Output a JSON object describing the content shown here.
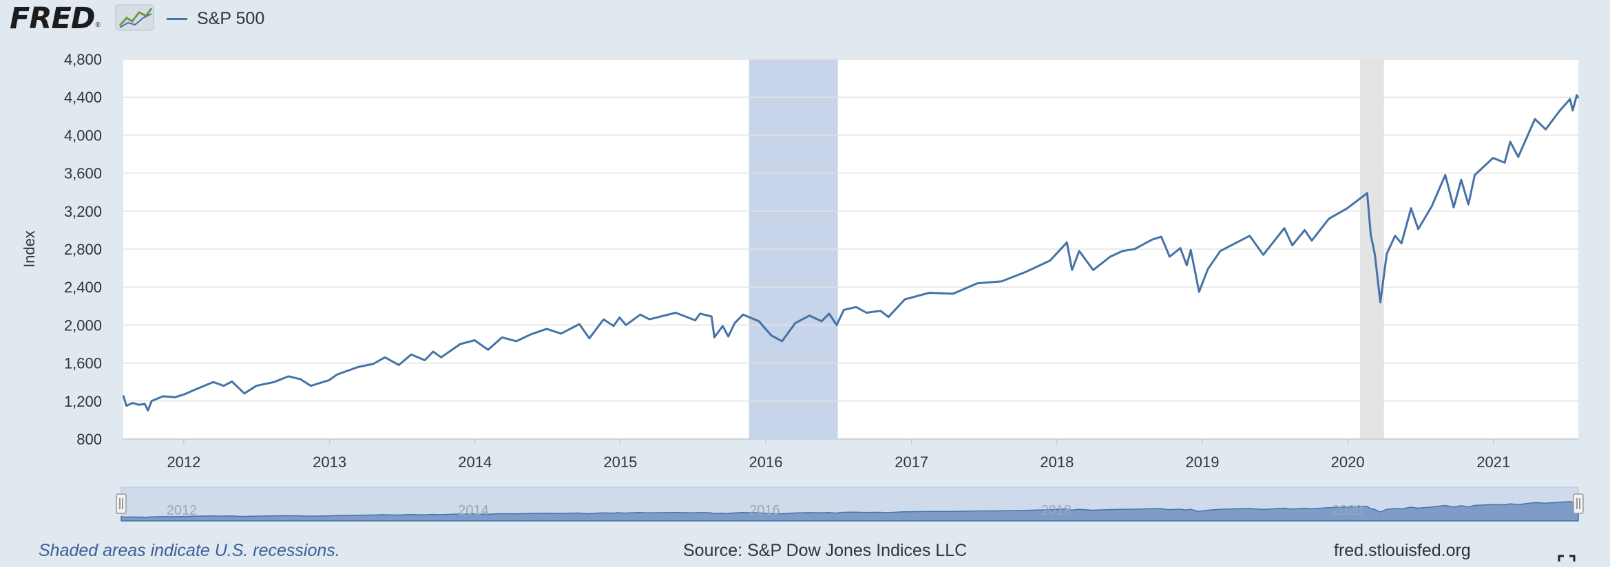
{
  "header": {
    "logo_text": "FRED",
    "logo_mark": "®",
    "legend_label": "S&P 500"
  },
  "footer": {
    "recession_note": "Shaded areas indicate U.S. recessions.",
    "source": "Source: S&P Dow Jones Indices LLC",
    "site": "fred.stlouisfed.org"
  },
  "icons": {
    "logo_graph": "line-chart-icon",
    "fullscreen": "fullscreen-icon"
  },
  "colors": {
    "series": "#4572a7",
    "shade": "#c8d4e9",
    "shade_covid": "#e3e3e3",
    "background": "#e1e9f0"
  },
  "chart_data": {
    "type": "line",
    "title": "",
    "xlabel": "",
    "ylabel": "Index",
    "ylim": [
      800,
      4800
    ],
    "xlim": [
      "2011-08-02",
      "2021-08-02"
    ],
    "yticks": [
      800,
      1200,
      1600,
      2000,
      2400,
      2800,
      3200,
      3600,
      4000,
      4400,
      4800
    ],
    "ytick_labels": [
      "800",
      "1,200",
      "1,600",
      "2,000",
      "2,400",
      "2,800",
      "3,200",
      "3,600",
      "4,000",
      "4,400",
      "4,800"
    ],
    "xticks": [
      "2012",
      "2013",
      "2014",
      "2015",
      "2016",
      "2017",
      "2018",
      "2019",
      "2020",
      "2021"
    ],
    "navigator_labels": [
      "2012",
      "2014",
      "2016",
      "2018",
      "2020"
    ],
    "grid": true,
    "legend": "top-left",
    "shaded_periods": [
      {
        "start": "2015-11-20",
        "end": "2016-06-30",
        "color": "#c8d4e9"
      },
      {
        "start": "2020-02-01",
        "end": "2020-04-01",
        "color": "#e3e3e3"
      }
    ],
    "series": [
      {
        "name": "S&P 500",
        "color": "#4572a7",
        "points": [
          [
            "2011-08-02",
            1260
          ],
          [
            "2011-08-10",
            1150
          ],
          [
            "2011-08-25",
            1180
          ],
          [
            "2011-09-10",
            1160
          ],
          [
            "2011-09-25",
            1170
          ],
          [
            "2011-10-03",
            1100
          ],
          [
            "2011-10-12",
            1200
          ],
          [
            "2011-11-10",
            1250
          ],
          [
            "2011-12-10",
            1240
          ],
          [
            "2012-01-02",
            1270
          ],
          [
            "2012-02-01",
            1325
          ],
          [
            "2012-03-15",
            1400
          ],
          [
            "2012-04-10",
            1360
          ],
          [
            "2012-05-01",
            1405
          ],
          [
            "2012-06-01",
            1280
          ],
          [
            "2012-07-01",
            1360
          ],
          [
            "2012-08-15",
            1400
          ],
          [
            "2012-09-20",
            1460
          ],
          [
            "2012-10-20",
            1430
          ],
          [
            "2012-11-15",
            1360
          ],
          [
            "2012-12-31",
            1420
          ],
          [
            "2013-01-20",
            1480
          ],
          [
            "2013-03-15",
            1560
          ],
          [
            "2013-04-20",
            1590
          ],
          [
            "2013-05-20",
            1660
          ],
          [
            "2013-06-24",
            1580
          ],
          [
            "2013-07-25",
            1690
          ],
          [
            "2013-08-28",
            1630
          ],
          [
            "2013-09-18",
            1720
          ],
          [
            "2013-10-08",
            1660
          ],
          [
            "2013-11-25",
            1800
          ],
          [
            "2013-12-31",
            1840
          ],
          [
            "2014-02-03",
            1740
          ],
          [
            "2014-03-10",
            1870
          ],
          [
            "2014-04-15",
            1830
          ],
          [
            "2014-05-20",
            1900
          ],
          [
            "2014-06-30",
            1960
          ],
          [
            "2014-08-05",
            1910
          ],
          [
            "2014-09-20",
            2010
          ],
          [
            "2014-10-15",
            1860
          ],
          [
            "2014-11-20",
            2060
          ],
          [
            "2014-12-15",
            1990
          ],
          [
            "2014-12-30",
            2080
          ],
          [
            "2015-01-15",
            2000
          ],
          [
            "2015-02-20",
            2110
          ],
          [
            "2015-03-15",
            2060
          ],
          [
            "2015-05-20",
            2130
          ],
          [
            "2015-07-08",
            2050
          ],
          [
            "2015-07-20",
            2120
          ],
          [
            "2015-08-18",
            2090
          ],
          [
            "2015-08-25",
            1870
          ],
          [
            "2015-09-15",
            1990
          ],
          [
            "2015-09-29",
            1880
          ],
          [
            "2015-10-15",
            2020
          ],
          [
            "2015-11-05",
            2110
          ],
          [
            "2015-12-15",
            2040
          ],
          [
            "2016-01-15",
            1890
          ],
          [
            "2016-02-11",
            1830
          ],
          [
            "2016-03-15",
            2020
          ],
          [
            "2016-04-20",
            2100
          ],
          [
            "2016-05-20",
            2040
          ],
          [
            "2016-06-08",
            2120
          ],
          [
            "2016-06-27",
            2000
          ],
          [
            "2016-07-15",
            2160
          ],
          [
            "2016-08-15",
            2190
          ],
          [
            "2016-09-10",
            2130
          ],
          [
            "2016-10-15",
            2150
          ],
          [
            "2016-11-04",
            2085
          ],
          [
            "2016-12-15",
            2270
          ],
          [
            "2017-02-15",
            2340
          ],
          [
            "2017-04-15",
            2330
          ],
          [
            "2017-06-15",
            2440
          ],
          [
            "2017-08-15",
            2460
          ],
          [
            "2017-10-15",
            2560
          ],
          [
            "2017-12-15",
            2680
          ],
          [
            "2018-01-26",
            2870
          ],
          [
            "2018-02-08",
            2580
          ],
          [
            "2018-02-26",
            2780
          ],
          [
            "2018-04-02",
            2580
          ],
          [
            "2018-05-15",
            2720
          ],
          [
            "2018-06-15",
            2780
          ],
          [
            "2018-07-15",
            2800
          ],
          [
            "2018-08-28",
            2900
          ],
          [
            "2018-09-20",
            2930
          ],
          [
            "2018-10-11",
            2720
          ],
          [
            "2018-11-07",
            2810
          ],
          [
            "2018-11-23",
            2630
          ],
          [
            "2018-12-03",
            2790
          ],
          [
            "2018-12-24",
            2350
          ],
          [
            "2019-01-15",
            2590
          ],
          [
            "2019-02-15",
            2780
          ],
          [
            "2019-04-30",
            2940
          ],
          [
            "2019-06-03",
            2740
          ],
          [
            "2019-07-26",
            3020
          ],
          [
            "2019-08-15",
            2840
          ],
          [
            "2019-09-15",
            3000
          ],
          [
            "2019-10-03",
            2890
          ],
          [
            "2019-11-15",
            3120
          ],
          [
            "2019-12-31",
            3230
          ],
          [
            "2020-02-19",
            3390
          ],
          [
            "2020-02-28",
            2950
          ],
          [
            "2020-03-09",
            2750
          ],
          [
            "2020-03-23",
            2240
          ],
          [
            "2020-04-08",
            2750
          ],
          [
            "2020-04-29",
            2940
          ],
          [
            "2020-05-15",
            2860
          ],
          [
            "2020-06-08",
            3230
          ],
          [
            "2020-06-26",
            3010
          ],
          [
            "2020-07-30",
            3250
          ],
          [
            "2020-09-02",
            3580
          ],
          [
            "2020-09-23",
            3240
          ],
          [
            "2020-10-12",
            3530
          ],
          [
            "2020-10-30",
            3270
          ],
          [
            "2020-11-15",
            3580
          ],
          [
            "2020-12-31",
            3760
          ],
          [
            "2021-01-29",
            3710
          ],
          [
            "2021-02-12",
            3930
          ],
          [
            "2021-03-04",
            3770
          ],
          [
            "2021-04-15",
            4170
          ],
          [
            "2021-05-12",
            4060
          ],
          [
            "2021-06-15",
            4250
          ],
          [
            "2021-07-12",
            4380
          ],
          [
            "2021-07-19",
            4260
          ],
          [
            "2021-07-29",
            4420
          ],
          [
            "2021-08-02",
            4390
          ]
        ]
      }
    ]
  }
}
